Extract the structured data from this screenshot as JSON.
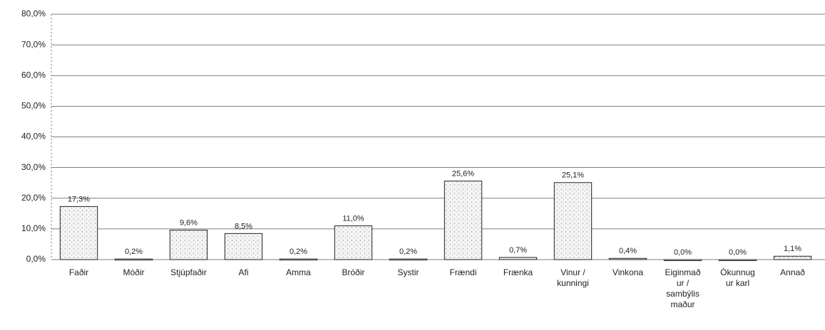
{
  "chart_data": {
    "type": "bar",
    "categories": [
      "Faðir",
      "Móðir",
      "Stjúpfaðir",
      "Afi",
      "Amma",
      "Bróðir",
      "Systir",
      "Frændi",
      "Frænka",
      "Vinur /\nkunningi",
      "Vinkona",
      "Eiginmað\nur /\nsambýlis\nmaður",
      "Ókunnug\nur karl",
      "Annað"
    ],
    "values": [
      17.3,
      0.2,
      9.6,
      8.5,
      0.2,
      11.0,
      0.2,
      25.6,
      0.7,
      25.1,
      0.4,
      0.0,
      0.0,
      1.1
    ],
    "value_labels": [
      "17,3%",
      "0,2%",
      "9,6%",
      "8,5%",
      "0,2%",
      "11,0%",
      "0,2%",
      "25,6%",
      "0,7%",
      "25,1%",
      "0,4%",
      "0,0%",
      "0,0%",
      "1,1%"
    ],
    "color": "#e4e4e4",
    "ylim": [
      0,
      80
    ],
    "yticks": [
      {
        "value": 0,
        "label": "0,0%"
      },
      {
        "value": 10,
        "label": "10,0%"
      },
      {
        "value": 20,
        "label": "20,0%"
      },
      {
        "value": 30,
        "label": "30,0%"
      },
      {
        "value": 40,
        "label": "40,0%"
      },
      {
        "value": 50,
        "label": "50,0%"
      },
      {
        "value": 60,
        "label": "60,0%"
      },
      {
        "value": 70,
        "label": "70,0%"
      },
      {
        "value": 80,
        "label": "80,0%"
      }
    ],
    "grid": true
  }
}
